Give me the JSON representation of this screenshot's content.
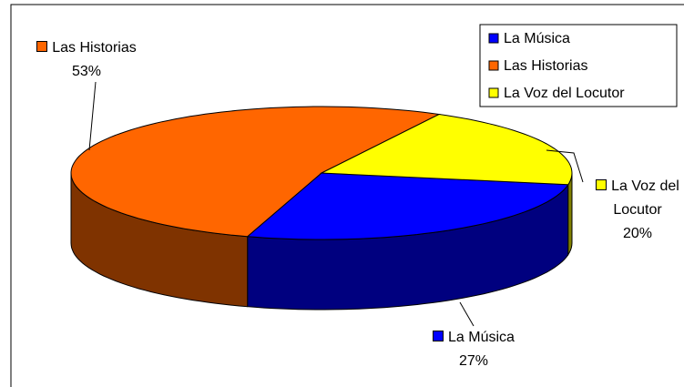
{
  "chart_data": {
    "type": "pie",
    "categories": [
      "La Música",
      "Las Historias",
      "La Voz del Locutor"
    ],
    "values": [
      27,
      53,
      20
    ],
    "value_labels": [
      "27%",
      "53%",
      "20%"
    ],
    "colors": [
      "#0000ff",
      "#ff6600",
      "#ffff00"
    ],
    "legend": "top-right"
  }
}
